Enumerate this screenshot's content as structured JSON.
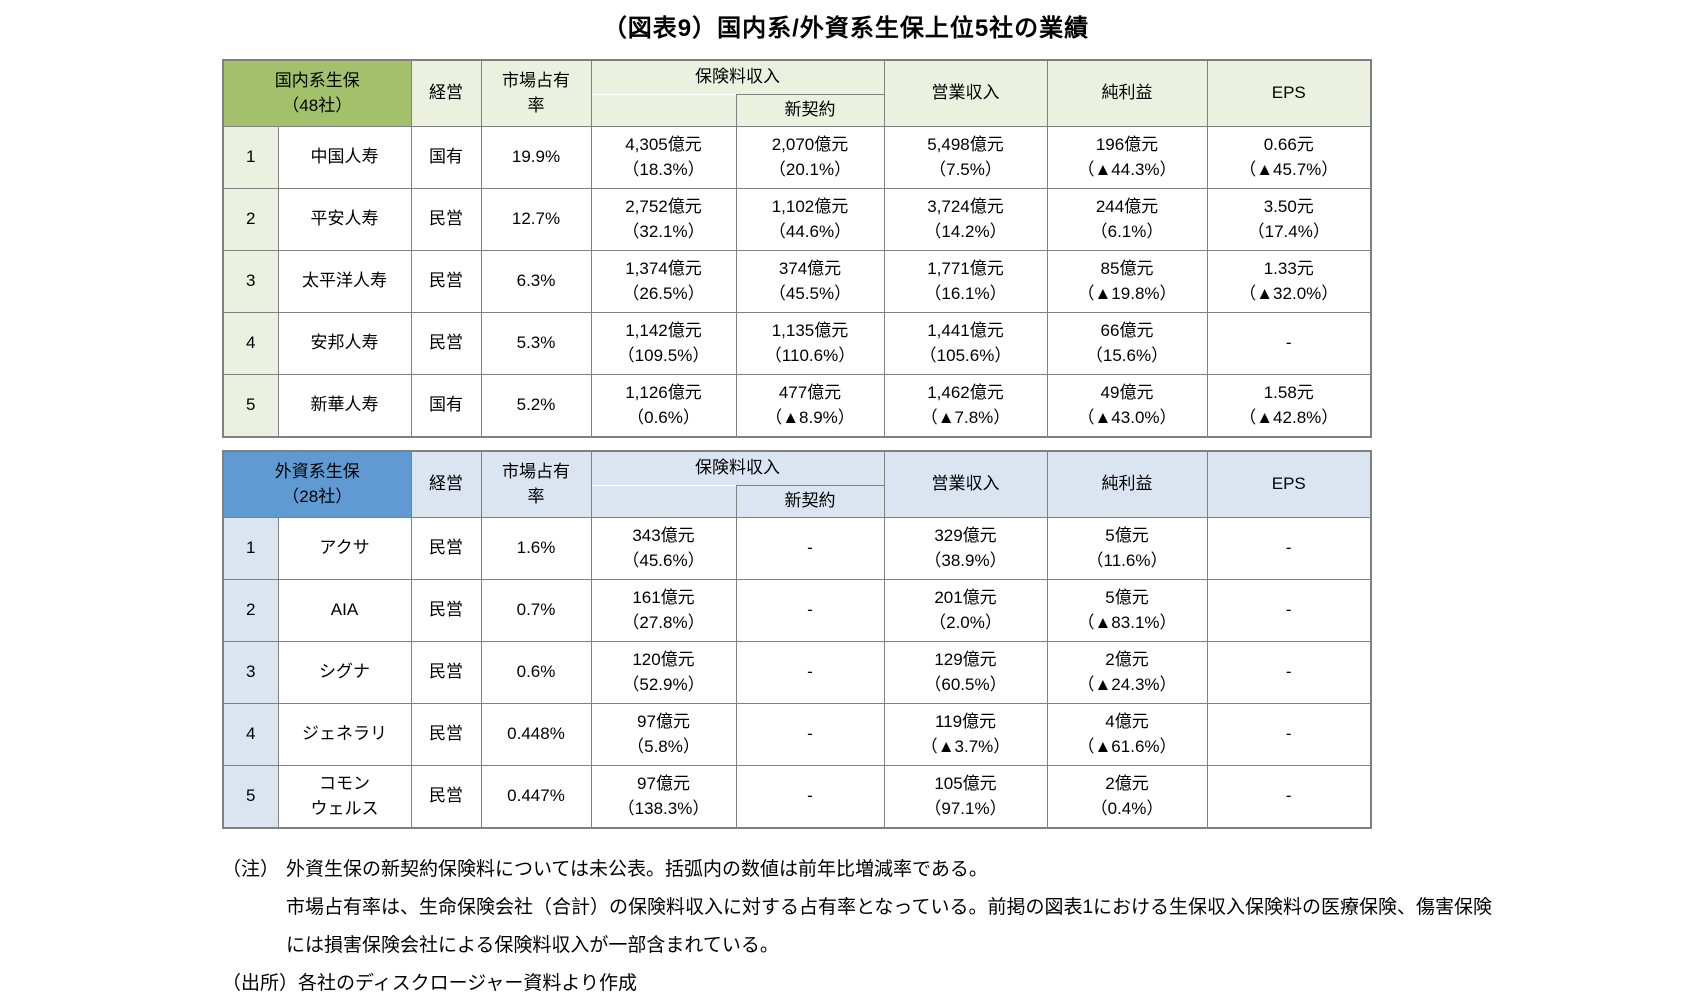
{
  "page": {
    "title": "（図表9）国内系/外資系生保上位5社の業績"
  },
  "columns": {
    "management": "経営",
    "market_share": "市場占有\n率",
    "premium_income": "保険料収入",
    "new_contract": "新契約",
    "operating_income": "営業収入",
    "net_profit": "純利益",
    "eps": "EPS"
  },
  "colors": {
    "domestic_group_green": "#a3c06a",
    "domestic_header_light_green": "#ebf1de",
    "foreign_group_blue": "#5f9ad2",
    "foreign_header_light_blue": "#dbe5f1",
    "border_gray": "#808080"
  },
  "tables": [
    {
      "id": "domestic",
      "group_label": "国内系生保\n（48社）",
      "rows": [
        {
          "rank": "1",
          "name": "中国人寿",
          "management": "国有",
          "market_share": "19.9%",
          "premium": "4,305億元\n（18.3%）",
          "new_contract": "2,070億元\n（20.1%）",
          "operating": "5,498億元\n（7.5%）",
          "profit": "196億元\n（▲44.3%）",
          "eps": "0.66元\n（▲45.7%）"
        },
        {
          "rank": "2",
          "name": "平安人寿",
          "management": "民営",
          "market_share": "12.7%",
          "premium": "2,752億元\n（32.1%）",
          "new_contract": "1,102億元\n（44.6%）",
          "operating": "3,724億元\n（14.2%）",
          "profit": "244億元\n（6.1%）",
          "eps": "3.50元\n（17.4%）"
        },
        {
          "rank": "3",
          "name": "太平洋人寿",
          "management": "民営",
          "market_share": "6.3%",
          "premium": "1,374億元\n（26.5%）",
          "new_contract": "374億元\n（45.5%）",
          "operating": "1,771億元\n（16.1%）",
          "profit": "85億元\n（▲19.8%）",
          "eps": "1.33元\n（▲32.0%）"
        },
        {
          "rank": "4",
          "name": "安邦人寿",
          "management": "民営",
          "market_share": "5.3%",
          "premium": "1,142億元\n（109.5%）",
          "new_contract": "1,135億元\n（110.6%）",
          "operating": "1,441億元\n（105.6%）",
          "profit": "66億元\n（15.6%）",
          "eps": "-"
        },
        {
          "rank": "5",
          "name": "新華人寿",
          "management": "国有",
          "market_share": "5.2%",
          "premium": "1,126億元\n（0.6%）",
          "new_contract": "477億元\n（▲8.9%）",
          "operating": "1,462億元\n（▲7.8%）",
          "profit": "49億元\n（▲43.0%）",
          "eps": "1.58元\n（▲42.8%）"
        }
      ]
    },
    {
      "id": "foreign",
      "group_label": "外資系生保\n（28社）",
      "rows": [
        {
          "rank": "1",
          "name": "アクサ",
          "management": "民営",
          "market_share": "1.6%",
          "premium": "343億元\n（45.6%）",
          "new_contract": "-",
          "operating": "329億元\n（38.9%）",
          "profit": "5億元\n（11.6%）",
          "eps": "-"
        },
        {
          "rank": "2",
          "name": "AIA",
          "management": "民営",
          "market_share": "0.7%",
          "premium": "161億元\n（27.8%）",
          "new_contract": "-",
          "operating": "201億元\n（2.0%）",
          "profit": "5億元\n（▲83.1%）",
          "eps": "-"
        },
        {
          "rank": "3",
          "name": "シグナ",
          "management": "民営",
          "market_share": "0.6%",
          "premium": "120億元\n（52.9%）",
          "new_contract": "-",
          "operating": "129億元\n（60.5%）",
          "profit": "2億元\n（▲24.3%）",
          "eps": "-"
        },
        {
          "rank": "4",
          "name": "ジェネラリ",
          "management": "民営",
          "market_share": "0.448%",
          "premium": "97億元\n（5.8%）",
          "new_contract": "-",
          "operating": "119億元\n（▲3.7%）",
          "profit": "4億元\n（▲61.6%）",
          "eps": "-"
        },
        {
          "rank": "5",
          "name": "コモン\nウェルス",
          "management": "民営",
          "market_share": "0.447%",
          "premium": "97億元\n（138.3%）",
          "new_contract": "-",
          "operating": "105億元\n（97.1%）",
          "profit": "2億元\n（0.4%）",
          "eps": "-"
        }
      ]
    }
  ],
  "notes": [
    {
      "label": "（注）",
      "text": "外資生保の新契約保険料については未公表。括弧内の数値は前年比増減率である。"
    },
    {
      "label": "",
      "text": "市場占有率は、生命保険会社（合計）の保険料収入に対する占有率となっている。前掲の図表1における生保収入保険料の医療保険、傷害保険には損害保険会社による保険料収入が一部含まれている。"
    },
    {
      "label": "（出所）",
      "text": "各社のディスクロージャー資料より作成"
    }
  ]
}
